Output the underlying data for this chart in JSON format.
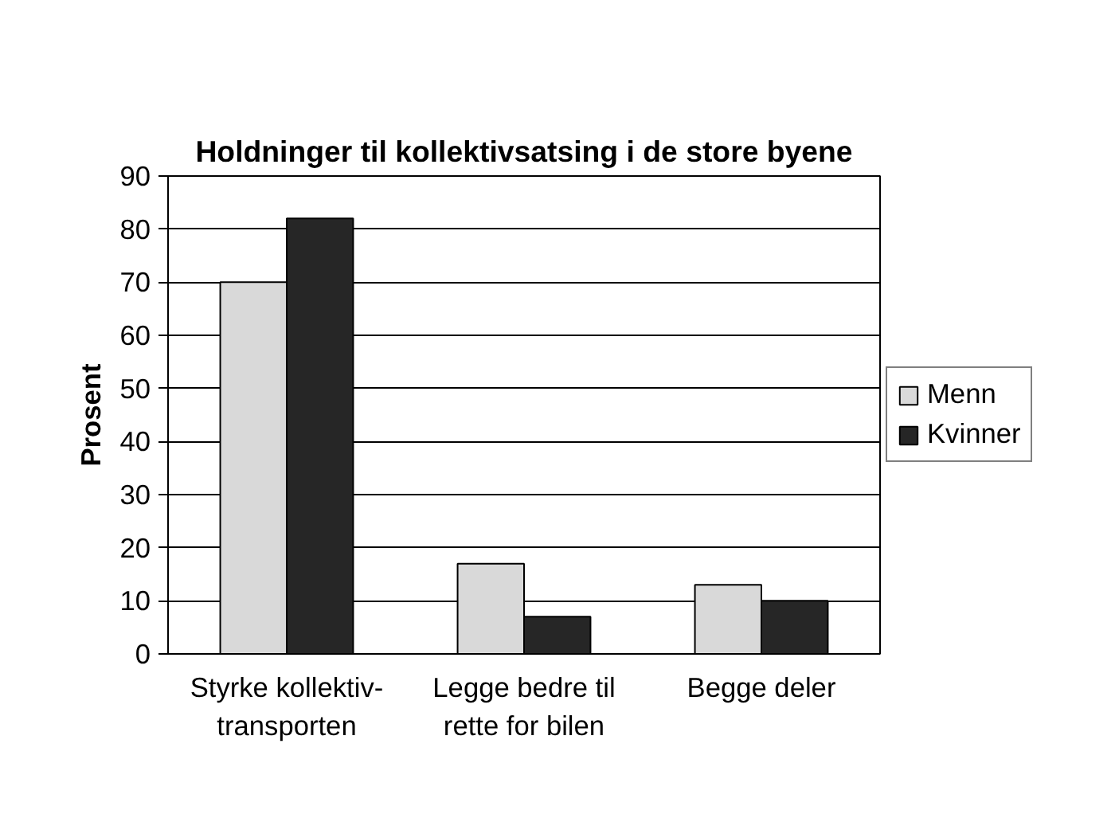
{
  "chart_data": {
    "type": "bar",
    "title": "Holdninger til kollektivsatsing i de store byene",
    "ylabel": "Prosent",
    "categories": [
      "Styrke kollektiv-\ntransporten",
      "Legge bedre til\nrette for bilen",
      "Begge deler"
    ],
    "series": [
      {
        "name": "Menn",
        "color": "#d9d9d9",
        "values": [
          70,
          17,
          13
        ]
      },
      {
        "name": "Kvinner",
        "color": "#262626",
        "values": [
          82,
          7,
          10
        ]
      }
    ],
    "ylim": [
      0,
      90
    ],
    "yticks": [
      0,
      10,
      20,
      30,
      40,
      50,
      60,
      70,
      80,
      90
    ],
    "grid": "y",
    "legend": "right"
  }
}
